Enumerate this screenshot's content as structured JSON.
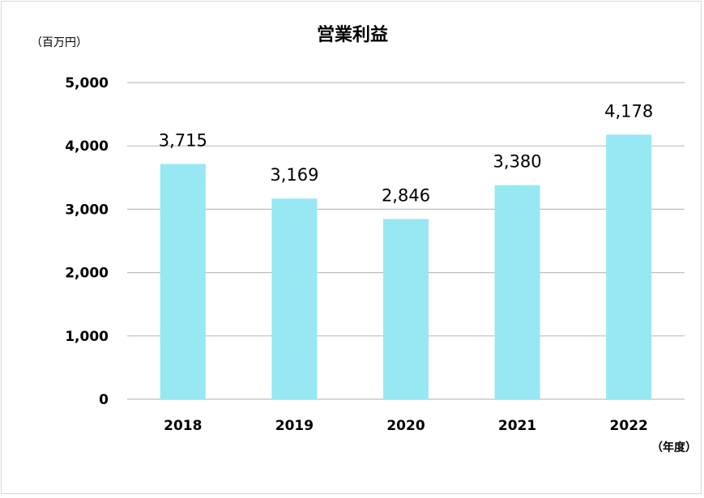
{
  "chart_data": {
    "type": "bar",
    "title": "営業利益",
    "ylabel": "（百万円）",
    "xlabel": "（年度）",
    "categories": [
      "2018",
      "2019",
      "2020",
      "2021",
      "2022"
    ],
    "values": [
      3715,
      3169,
      2846,
      3380,
      4178
    ],
    "data_labels": [
      "3,715",
      "3,169",
      "2,846",
      "3,380",
      "4,178"
    ],
    "ylim": [
      0,
      5000
    ],
    "yticks": [
      0,
      1000,
      2000,
      3000,
      4000,
      5000
    ],
    "ytick_labels": [
      "0",
      "1,000",
      "2,000",
      "3,000",
      "4,000",
      "5,000"
    ],
    "grid": true,
    "legend": "none",
    "bar_color": "#97E8F2",
    "grid_color": "#bfbfbf"
  }
}
